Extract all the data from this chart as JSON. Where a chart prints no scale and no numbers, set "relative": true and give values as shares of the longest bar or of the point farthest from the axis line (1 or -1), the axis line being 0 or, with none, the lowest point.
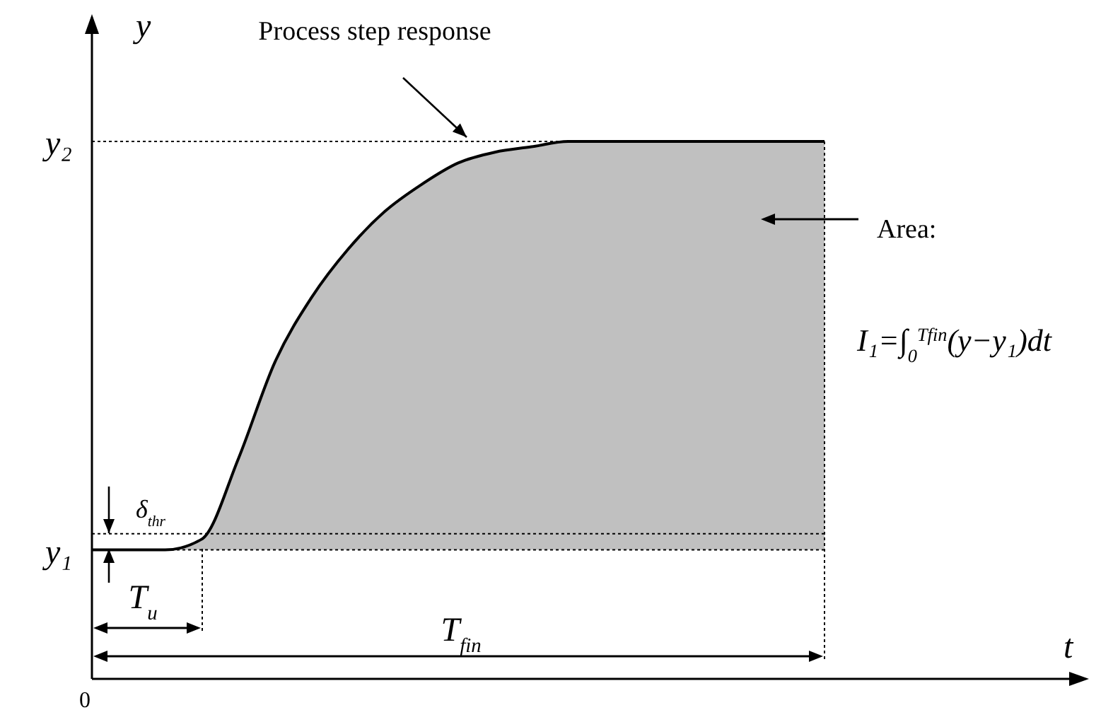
{
  "chart_data": {
    "type": "area",
    "relative": true,
    "ylabel": "y",
    "categories": [
      null,
      null,
      null,
      null,
      null,
      null,
      null,
      null,
      null,
      null,
      null,
      null,
      null,
      null,
      null,
      null,
      null,
      null,
      null,
      null,
      null
    ],
    "series": [
      {
        "color": "#c0c0c0",
        "values": [
          0.24,
          0.24,
          0.24,
          0.26,
          0.41,
          0.59,
          0.71,
          0.8,
          0.87,
          0.92,
          0.96,
          0.98,
          0.99,
          1,
          1,
          1,
          1,
          1,
          1,
          1,
          1
        ]
      }
    ],
    "ref_lines": [
      {
        "axis": "y",
        "value": 0.24,
        "label": "y₁",
        "line_style": "dotted",
        "color": "#000000"
      },
      {
        "axis": "y",
        "value": 0.27,
        "label": null,
        "line_style": "dotted",
        "color": "#000000"
      },
      {
        "axis": "y",
        "value": 1,
        "label": "y₂",
        "line_style": "dotted",
        "color": "#000000"
      }
    ],
    "annotations": [
      "Process step response",
      "Area:",
      "I₁=∫$_{0}$$^{Tfin}$(y−y₁)dt",
      "δ$_{thr}$",
      "T$_{u}$",
      "T$_{fin}$",
      "0",
      "t"
    ],
    "marker": "none"
  }
}
